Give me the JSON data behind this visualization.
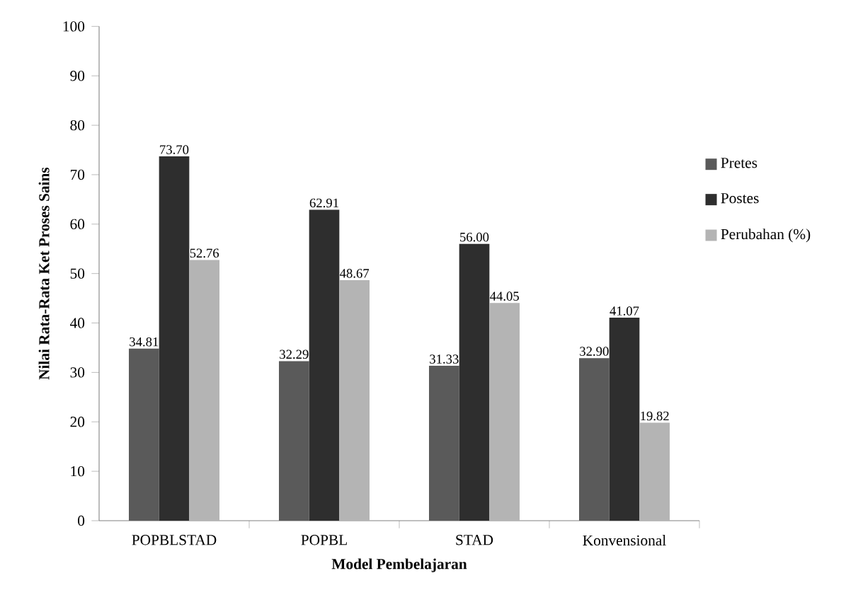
{
  "chart_data": {
    "type": "bar",
    "xlabel": "Model Pembelajaran",
    "ylabel": "Nilai Rata-Rata Ket Proses Sains",
    "categories": [
      "POPBLSTAD",
      "POPBL",
      "STAD",
      "Konvensional"
    ],
    "series": [
      {
        "name": "Pretes",
        "color": "#5a5a5a",
        "values": [
          34.81,
          32.29,
          31.33,
          32.9
        ],
        "value_labels": [
          "34.81",
          "32.29",
          "31.33",
          "32.90"
        ]
      },
      {
        "name": "Postes",
        "color": "#2e2e2e",
        "values": [
          73.7,
          62.91,
          56.0,
          41.07
        ],
        "value_labels": [
          "73.70",
          "62.91",
          "56.00",
          "41.07"
        ]
      },
      {
        "name": "Perubahan (%)",
        "color": "#b4b4b4",
        "values": [
          52.76,
          48.67,
          44.05,
          19.82
        ],
        "value_labels": [
          "52.76",
          "48.67",
          "44.05",
          "19.82"
        ]
      }
    ],
    "ylim": [
      0,
      100
    ],
    "yticks": [
      0,
      10,
      20,
      30,
      40,
      50,
      60,
      70,
      80,
      90,
      100
    ],
    "grid": false,
    "legend": "right"
  }
}
